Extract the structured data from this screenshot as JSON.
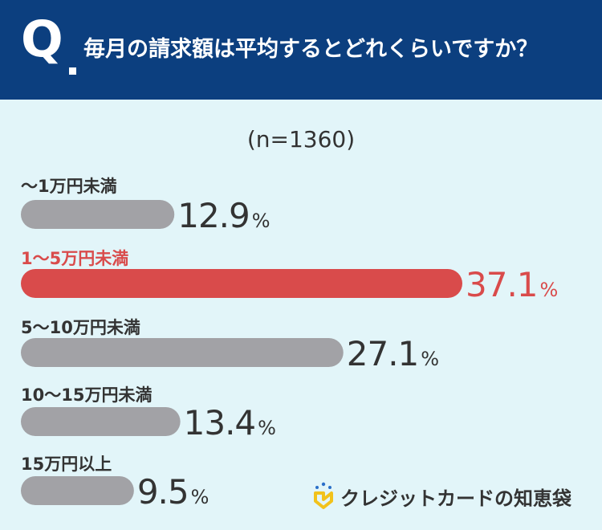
{
  "header": {
    "q_mark": "Q",
    "question": "毎月の請求額は平均するとどれくらいですか？"
  },
  "sample_size": "(n=1360)",
  "colors": {
    "header_bg": "#0c3f7f",
    "page_bg": "#e2f5f9",
    "bar_default": "#a2a2a6",
    "bar_highlight": "#d94b4b",
    "text_dark": "#333333"
  },
  "chart_data": {
    "type": "bar",
    "orientation": "horizontal",
    "unit": "%",
    "categories": [
      "〜1万円未満",
      "1〜5万円未満",
      "5〜10万円未満",
      "10〜15万円未満",
      "15万円以上"
    ],
    "values": [
      12.9,
      37.1,
      27.1,
      13.4,
      9.5
    ],
    "labels": [
      "12.9",
      "37.1",
      "27.1",
      "13.4",
      "9.5"
    ],
    "highlight_index": 1,
    "xlim": [
      0,
      37.1
    ]
  },
  "logo": {
    "icon": "lightbulb-logo-icon",
    "text": "クレジットカードの知恵袋"
  }
}
